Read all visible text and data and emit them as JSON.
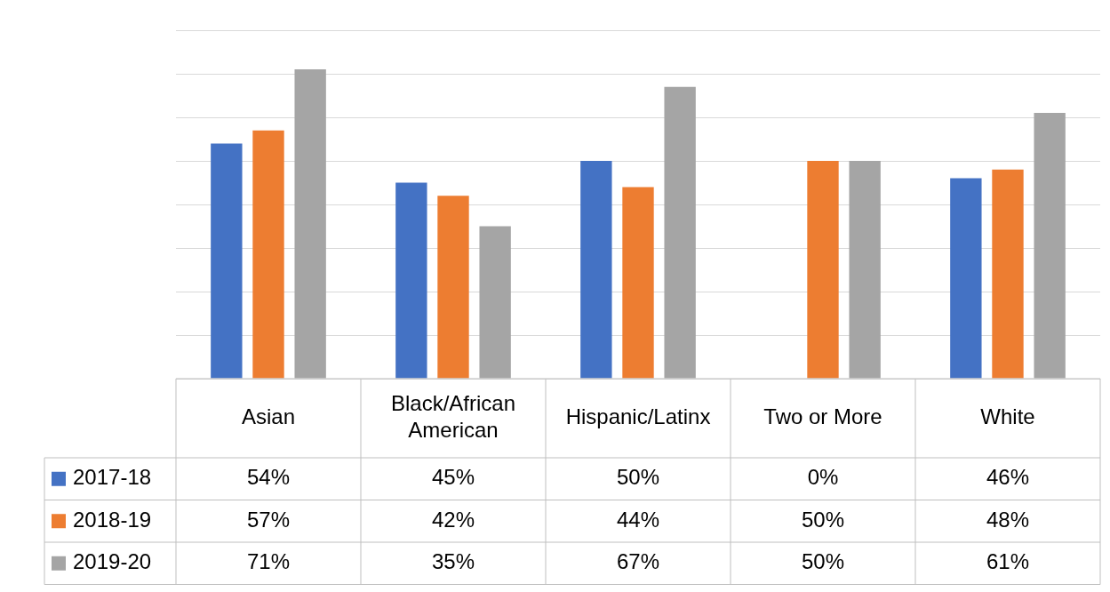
{
  "chart_data": {
    "type": "bar",
    "categories": [
      "Asian",
      "Black/African American",
      "Hispanic/Latinx",
      "Two or More",
      "White"
    ],
    "series": [
      {
        "name": "2017-18",
        "color": "#4472c4",
        "values": [
          54,
          45,
          50,
          0,
          46
        ],
        "value_labels": [
          "54%",
          "45%",
          "50%",
          "0%",
          "46%"
        ]
      },
      {
        "name": "2018-19",
        "color": "#ed7d31",
        "values": [
          57,
          42,
          44,
          50,
          48
        ],
        "value_labels": [
          "57%",
          "42%",
          "44%",
          "50%",
          "48%"
        ]
      },
      {
        "name": "2019-20",
        "color": "#a5a5a5",
        "values": [
          71,
          35,
          67,
          50,
          61
        ],
        "value_labels": [
          "71%",
          "35%",
          "67%",
          "50%",
          "61%"
        ]
      }
    ],
    "ylim": [
      0,
      80
    ],
    "yticks": [
      {
        "value": 0,
        "label": null
      },
      {
        "value": 10,
        "label": null
      },
      {
        "value": 20,
        "label": null
      },
      {
        "value": 30,
        "label": null
      },
      {
        "value": 40,
        "label": null
      },
      {
        "value": 50,
        "label": null
      },
      {
        "value": 60,
        "label": null
      },
      {
        "value": 70,
        "label": null
      },
      {
        "value": 80,
        "label": null
      }
    ],
    "tick_labels": "x",
    "grid": "y",
    "legend": "bottom"
  }
}
